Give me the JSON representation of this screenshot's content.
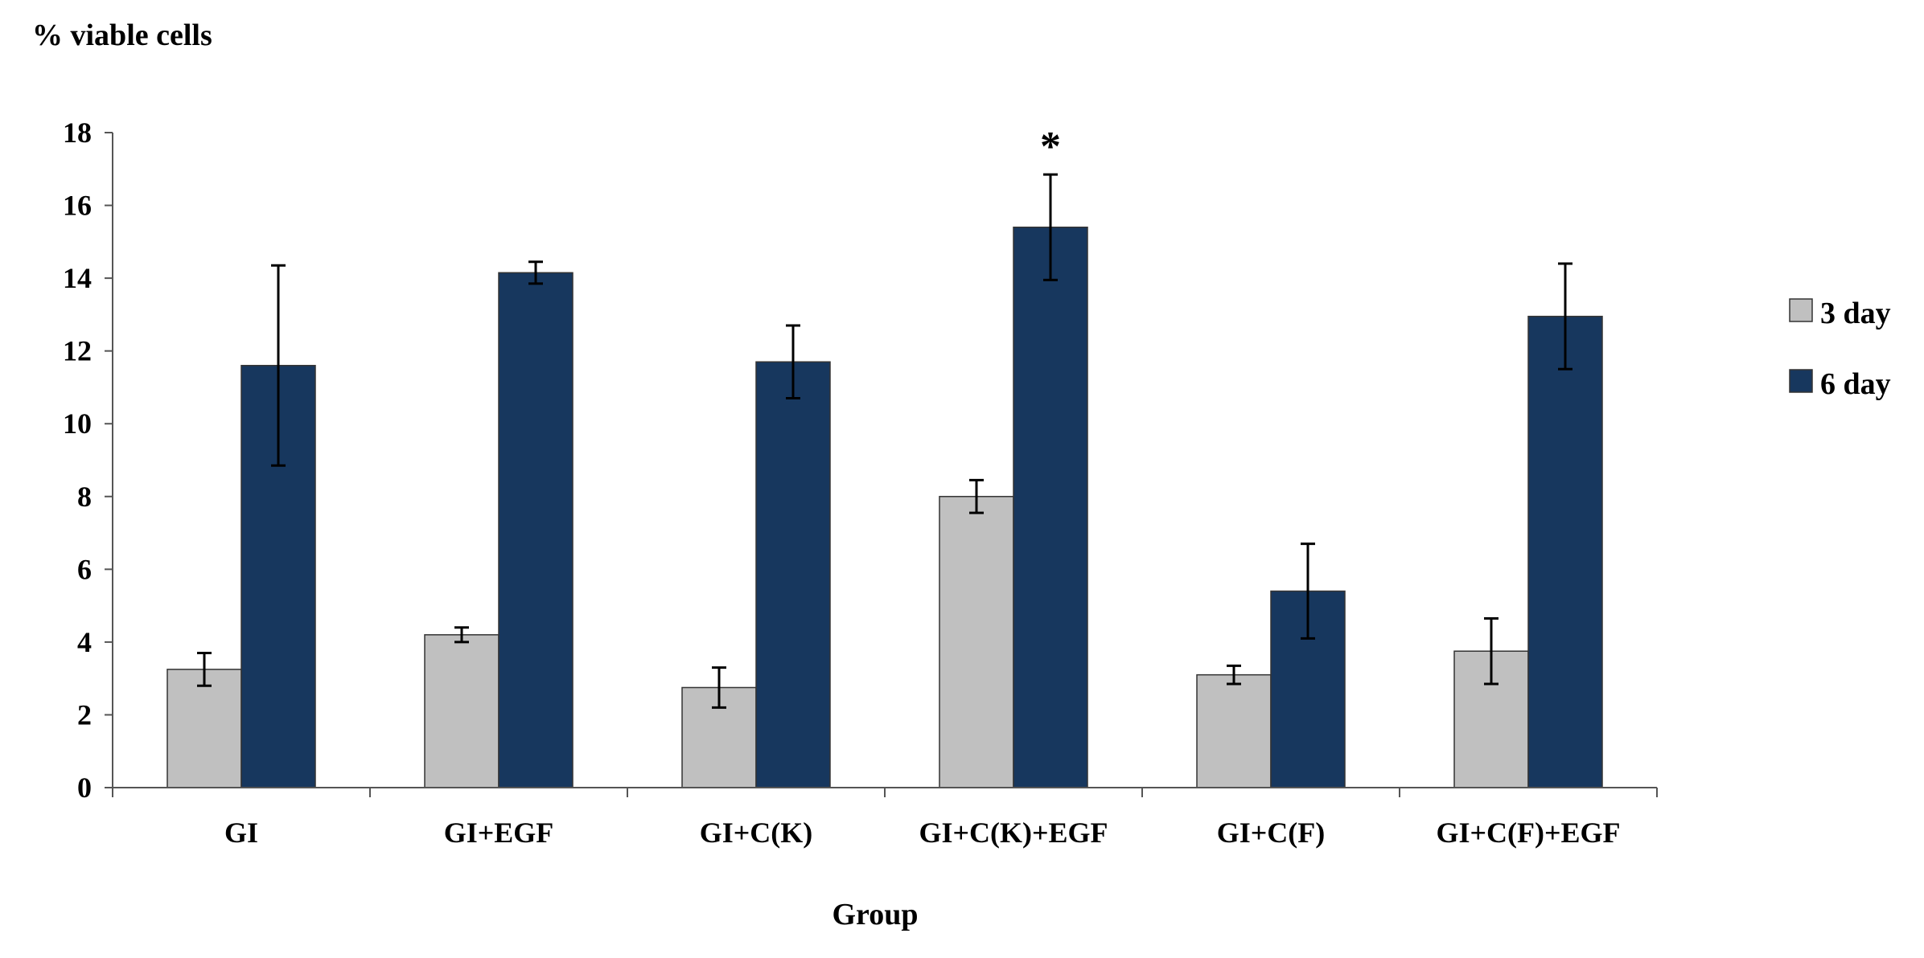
{
  "chart_data": {
    "type": "bar",
    "title": "",
    "ylabel": "% viable cells",
    "xlabel": "Group",
    "ylim": [
      0,
      18
    ],
    "yticks": [
      0,
      2,
      4,
      6,
      8,
      10,
      12,
      14,
      16,
      18
    ],
    "categories": [
      "GI",
      "GI+EGF",
      "GI+C(K)",
      "GI+C(K)+EGF",
      "GI+C(F)",
      "GI+C(F)+EGF"
    ],
    "series": [
      {
        "name": "3 day",
        "color": "#c0c0c0",
        "values": [
          3.25,
          4.2,
          2.75,
          8.0,
          3.1,
          3.75
        ],
        "errors": [
          0.45,
          0.2,
          0.55,
          0.45,
          0.25,
          0.9
        ]
      },
      {
        "name": "6 day",
        "color": "#17375e",
        "values": [
          11.6,
          14.15,
          11.7,
          15.4,
          5.4,
          12.95
        ],
        "errors": [
          2.75,
          0.3,
          1.0,
          1.45,
          1.3,
          1.45
        ]
      }
    ],
    "legend_position": "right",
    "annotations": [
      {
        "category": "GI+C(K)+EGF",
        "series": "6 day",
        "text": "*"
      }
    ]
  }
}
